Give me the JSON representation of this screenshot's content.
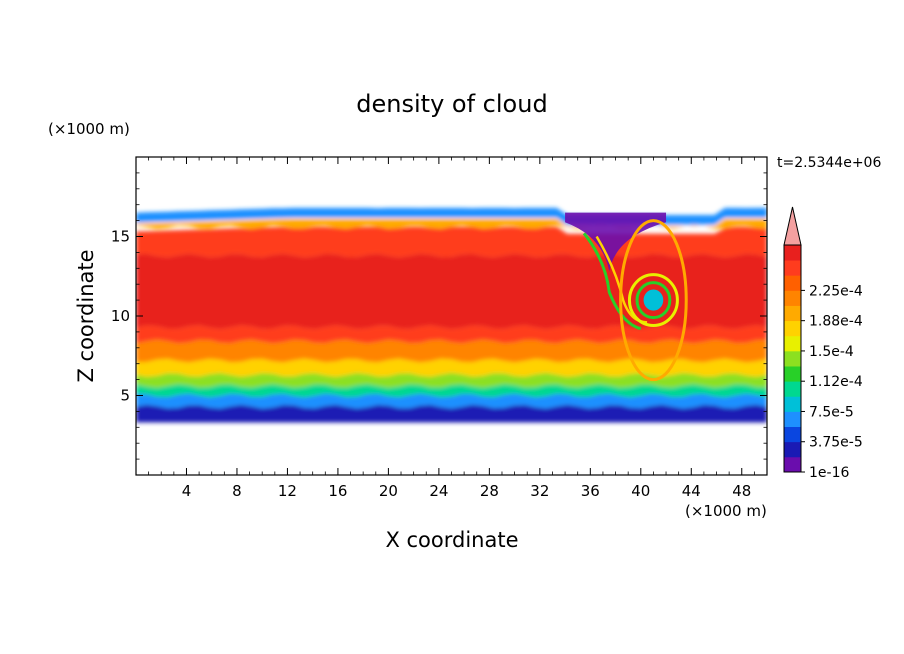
{
  "chart_data": {
    "type": "heatmap",
    "title": "density of cloud",
    "xlabel": "X coordinate",
    "ylabel": "Z coordinate",
    "x_unit": "(×1000 m)",
    "y_unit": "(×1000 m)",
    "time_label": "t=2.5344e+06",
    "xlim": [
      0,
      50
    ],
    "ylim": [
      0,
      20
    ],
    "x_ticks": [
      4,
      8,
      12,
      16,
      20,
      24,
      28,
      32,
      36,
      40,
      44,
      48
    ],
    "y_ticks": [
      5,
      10,
      15
    ],
    "colorbar": {
      "labels": [
        "1e-16",
        "3.75e-5",
        "7.5e-5",
        "1.12e-4",
        "1.5e-4",
        "1.88e-4",
        "2.25e-4"
      ],
      "colors": [
        "#6a0dad",
        "#1a1ab4",
        "#0a46e0",
        "#1e90ff",
        "#00c0d8",
        "#00d890",
        "#28d028",
        "#8ce020",
        "#e8f000",
        "#ffd200",
        "#ffaa00",
        "#ff8400",
        "#ff6000",
        "#ff3c1e",
        "#e8201e"
      ],
      "extend_color": "#f4a0a0"
    },
    "field_bands": [
      {
        "z_from": 3.3,
        "z_to": 4.3,
        "level": 1
      },
      {
        "z_from": 4.3,
        "z_to": 5.0,
        "level": 3
      },
      {
        "z_from": 5.0,
        "z_to": 5.6,
        "level": 5
      },
      {
        "z_from": 5.6,
        "z_to": 6.3,
        "level": 7
      },
      {
        "z_from": 6.3,
        "z_to": 7.2,
        "level": 9
      },
      {
        "z_from": 7.2,
        "z_to": 8.4,
        "level": 11
      },
      {
        "z_from": 8.4,
        "z_to": 9.3,
        "level": 13
      },
      {
        "z_from": 9.3,
        "z_to": 13.8,
        "level": 14
      },
      {
        "z_from": 13.8,
        "z_to": 15.6,
        "level": 13
      },
      {
        "z_from": 15.6,
        "z_to": 16.4,
        "level": 10
      },
      {
        "z_from": 16.4,
        "z_to": 16.9,
        "level": 3
      }
    ],
    "features": {
      "cloud_top_z_km": 16.8,
      "cloud_base_z_km": 3.3,
      "downdraft_x_km": 37.5,
      "vortex_center": {
        "x_km": 41,
        "z_km": 11
      }
    }
  }
}
